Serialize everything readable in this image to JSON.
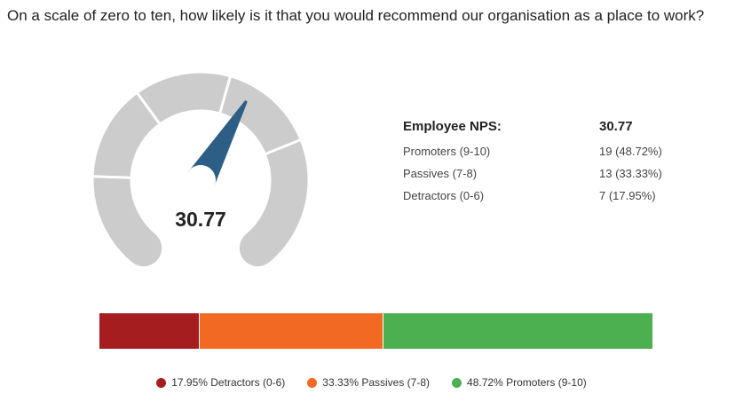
{
  "question": "On a scale of zero to ten, how likely is it that you would recommend our organisation as a place to work?",
  "gauge": {
    "value_label": "30.77",
    "min": -100,
    "max": 100,
    "value": 30.77,
    "track_color": "#cccccc",
    "needle_color": "#2d5f86"
  },
  "nps_table": {
    "header_label": "Employee NPS:",
    "header_value": "30.77",
    "rows": [
      {
        "label": "Promoters (9-10)",
        "value": "19 (48.72%)"
      },
      {
        "label": "Passives (7-8)",
        "value": "13 (33.33%)"
      },
      {
        "label": "Detractors (0-6)",
        "value": "7 (17.95%)"
      }
    ]
  },
  "chart_data": {
    "type": "bar",
    "stacked": true,
    "orientation": "horizontal",
    "categories": [
      "Detractors (0-6)",
      "Passives (7-8)",
      "Promoters (9-10)"
    ],
    "values": [
      17.95,
      33.33,
      48.72
    ],
    "colors": [
      "#a51d1f",
      "#f26a22",
      "#4caf50"
    ],
    "legend": [
      {
        "label": "17.95% Detractors (0-6)",
        "color": "#a51d1f"
      },
      {
        "label": "33.33% Passives (7-8)",
        "color": "#f26a22"
      },
      {
        "label": "48.72% Promoters (9-10)",
        "color": "#4caf50"
      }
    ],
    "legend_position": "bottom"
  }
}
